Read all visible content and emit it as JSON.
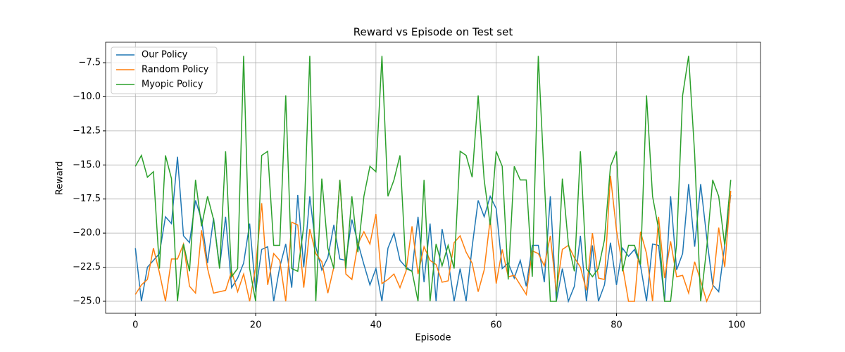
{
  "chart_data": {
    "type": "line",
    "title": "Reward vs Episode on Test set",
    "x_label": "Episode",
    "y_label": "Reward",
    "x": [
      0,
      1,
      2,
      3,
      4,
      5,
      6,
      7,
      8,
      9,
      10,
      11,
      12,
      13,
      14,
      15,
      16,
      17,
      18,
      19,
      20,
      21,
      22,
      23,
      24,
      25,
      26,
      27,
      28,
      29,
      30,
      31,
      32,
      33,
      34,
      35,
      36,
      37,
      38,
      39,
      40,
      41,
      42,
      43,
      44,
      45,
      46,
      47,
      48,
      49,
      50,
      51,
      52,
      53,
      54,
      55,
      56,
      57,
      58,
      59,
      60,
      61,
      62,
      63,
      64,
      65,
      66,
      67,
      68,
      69,
      70,
      71,
      72,
      73,
      74,
      75,
      76,
      77,
      78,
      79,
      80,
      81,
      82,
      83,
      84,
      85,
      86,
      87,
      88,
      89,
      90,
      91,
      92,
      93,
      94,
      95,
      96,
      97,
      98,
      99
    ],
    "series": [
      {
        "name": "Our Policy",
        "color": "#1f77b4",
        "values": [
          -21.1,
          -25,
          -22.5,
          -22,
          -21.5,
          -18.8,
          -19.3,
          -14.4,
          -20.2,
          -20.7,
          -17.6,
          -19,
          -22.2,
          -18.9,
          -22.5,
          -18.8,
          -24,
          -23.3,
          -22.2,
          -19.3,
          -24.3,
          -21.2,
          -21,
          -25,
          -22.5,
          -20.8,
          -24,
          -17.2,
          -22.5,
          -17.3,
          -21,
          -22.7,
          -21.8,
          -19.4,
          -21.9,
          -22,
          -19,
          -20.7,
          -22.3,
          -23.8,
          -22.6,
          -25,
          -21.1,
          -20,
          -22,
          -22.5,
          -22.8,
          -18.8,
          -23.6,
          -19.3,
          -25,
          -19.7,
          -22,
          -25,
          -22.6,
          -25,
          -21,
          -17.6,
          -18.8,
          -17.3,
          -18.2,
          -22.6,
          -22.2,
          -23.3,
          -22,
          -23.9,
          -20.9,
          -20.9,
          -23.6,
          -17.3,
          -25,
          -22.6,
          -25,
          -23.9,
          -20.2,
          -25,
          -20.9,
          -25,
          -23.8,
          -20.7,
          -23.8,
          -21.1,
          -21.7,
          -21.2,
          -22.4,
          -25,
          -20.8,
          -20.9,
          -25,
          -17.3,
          -22.7,
          -21.5,
          -16.4,
          -21,
          -16.4,
          -20.3,
          -23.8,
          -24.3,
          -20.9,
          -17.2
        ]
      },
      {
        "name": "Random Policy",
        "color": "#ff7f0e",
        "values": [
          -24.5,
          -23.8,
          -23.4,
          -21.1,
          -22.9,
          -25,
          -21.9,
          -21.9,
          -20.8,
          -23.9,
          -24.4,
          -19.8,
          -22.6,
          -24.4,
          -24.3,
          -24.2,
          -22.8,
          -24.3,
          -23,
          -25,
          -22.5,
          -17.8,
          -23.8,
          -21.5,
          -22,
          -25,
          -19.2,
          -19.4,
          -24,
          -19.7,
          -21.5,
          -22.1,
          -24.4,
          -22.5,
          -16.1,
          -23,
          -23.4,
          -20.8,
          -19.9,
          -20.8,
          -18.6,
          -23.7,
          -23.4,
          -23,
          -24,
          -22.8,
          -19.5,
          -23,
          -21,
          -22,
          -22.3,
          -23.6,
          -23.5,
          -20.7,
          -20.2,
          -21.4,
          -22.2,
          -24.3,
          -22.7,
          -19,
          -23.7,
          -21.2,
          -23.2,
          -23.1,
          -23.8,
          -24.5,
          -21.3,
          -21.5,
          -22.4,
          -20.2,
          -24.3,
          -21.2,
          -20.9,
          -21.8,
          -22.5,
          -24.2,
          -20,
          -23.3,
          -23.4,
          -15.8,
          -19.8,
          -22.4,
          -25,
          -25,
          -19.9,
          -21.5,
          -25,
          -18.8,
          -23.3,
          -20.6,
          -23.2,
          -23.1,
          -24.4,
          -22.1,
          -23.5,
          -25,
          -24,
          -19.6,
          -22.5,
          -16.9
        ]
      },
      {
        "name": "Myopic Policy",
        "color": "#2ca02c",
        "values": [
          -15.1,
          -14.3,
          -15.9,
          -15.5,
          -22.6,
          -14.3,
          -16,
          -25,
          -20.8,
          -22.8,
          -16.1,
          -19.5,
          -17.3,
          -19,
          -22.6,
          -14,
          -23.2,
          -22.6,
          -7,
          -22.6,
          -25,
          -14.3,
          -14,
          -20.9,
          -20.9,
          -9.9,
          -22.6,
          -22.8,
          -19.5,
          -7,
          -25,
          -16,
          -21.1,
          -22.6,
          -16.1,
          -22.6,
          -17.3,
          -21.4,
          -17.3,
          -15.1,
          -15.5,
          -7,
          -17.3,
          -16.1,
          -14.3,
          -22.6,
          -22.8,
          -25,
          -16.1,
          -25,
          -20.8,
          -22.4,
          -20.9,
          -22.6,
          -14,
          -14.3,
          -15.9,
          -9.9,
          -16.1,
          -19.4,
          -14,
          -15.1,
          -23.4,
          -15.1,
          -16.1,
          -16.1,
          -23.2,
          -7,
          -16.1,
          -25,
          -25,
          -16,
          -20.8,
          -22.8,
          -14,
          -22.6,
          -23.2,
          -22.6,
          -20.5,
          -15.1,
          -14,
          -22.8,
          -20.9,
          -20.9,
          -22.3,
          -9.9,
          -17.3,
          -19.7,
          -25,
          -25,
          -20.8,
          -9.9,
          -7,
          -14.2,
          -25,
          -21.1,
          -16.1,
          -17.3,
          -20.9,
          -16.1
        ]
      }
    ],
    "xlim": [
      -4.95,
      103.95
    ],
    "ylim": [
      -25.88,
      -6.0
    ],
    "xticks": [
      0,
      20,
      40,
      60,
      80,
      100
    ],
    "yticks": [
      {
        "value": -25.0,
        "label": "−25.0"
      },
      {
        "value": -22.5,
        "label": "−22.5"
      },
      {
        "value": -20.0,
        "label": "−20.0"
      },
      {
        "value": -17.5,
        "label": "−17.5"
      },
      {
        "value": -15.0,
        "label": "−15.0"
      },
      {
        "value": -12.5,
        "label": "−12.5"
      },
      {
        "value": -10.0,
        "label": "−10.0"
      },
      {
        "value": -7.5,
        "label": "−7.5"
      }
    ],
    "grid": true,
    "legend": "upper left"
  }
}
